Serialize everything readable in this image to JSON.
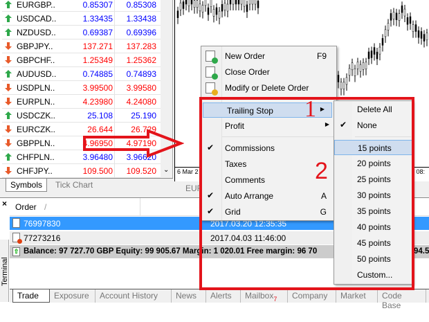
{
  "market_watch": {
    "rows": [
      {
        "symbol": "EURGBP..",
        "bid": "0.85307",
        "ask": "0.85308",
        "dir": "up"
      },
      {
        "symbol": "USDCAD..",
        "bid": "1.33435",
        "ask": "1.33438",
        "dir": "up"
      },
      {
        "symbol": "NZDUSD..",
        "bid": "0.69387",
        "ask": "0.69396",
        "dir": "up"
      },
      {
        "symbol": "GBPJPY..",
        "bid": "137.271",
        "ask": "137.283",
        "dir": "down"
      },
      {
        "symbol": "GBPCHF..",
        "bid": "1.25349",
        "ask": "1.25362",
        "dir": "down"
      },
      {
        "symbol": "AUDUSD..",
        "bid": "0.74885",
        "ask": "0.74893",
        "dir": "up"
      },
      {
        "symbol": "USDPLN..",
        "bid": "3.99500",
        "ask": "3.99580",
        "dir": "down"
      },
      {
        "symbol": "EURPLN..",
        "bid": "4.23980",
        "ask": "4.24080",
        "dir": "down"
      },
      {
        "symbol": "USDCZK..",
        "bid": "25.108",
        "ask": "25.190",
        "dir": "up"
      },
      {
        "symbol": "EURCZK..",
        "bid": "26.644",
        "ask": "26.729",
        "dir": "down"
      },
      {
        "symbol": "GBPPLN..",
        "bid": "4.96950",
        "ask": "4.97190",
        "dir": "down"
      },
      {
        "symbol": "CHFPLN..",
        "bid": "3.96480",
        "ask": "3.96620",
        "dir": "up"
      },
      {
        "symbol": "CHFJPY..",
        "bid": "109.500",
        "ask": "109.520",
        "dir": "down"
      }
    ],
    "tabs": [
      "Symbols",
      "Tick Chart"
    ]
  },
  "chart": {
    "date_left": "6 Mar 2",
    "date_right": "r 08:",
    "tab": "EUR"
  },
  "terminal": {
    "side_label": "Terminal",
    "close": "×",
    "col_order": "Order",
    "sort_mark": "/",
    "orders": [
      {
        "id": "76997830",
        "time": "2017.03.20 12:35:35",
        "selected": true
      },
      {
        "id": "77273216",
        "time": "2017.04.03 11:46:00",
        "selected": false
      }
    ],
    "balance": "Balance: 97 727.70 GBP  Equity: 99 905.67  Margin: 1 020.01  Free margin: 96 70",
    "balance_tail": "94.5",
    "tabs": [
      "Trade",
      "Exposure",
      "Account History",
      "News",
      "Alerts",
      "Mailbox",
      "Company",
      "Market",
      "Code Base"
    ],
    "mailbox_badge": "7"
  },
  "context_menu": {
    "items": [
      {
        "label": "New Order",
        "shortcut": "F9",
        "icon": "new-order-icon"
      },
      {
        "label": "Close Order",
        "icon": "close-order-icon"
      },
      {
        "label": "Modify or Delete Order",
        "icon": "modify-order-icon"
      },
      {
        "label": "Trailing Stop",
        "submenu": true,
        "highlighted": true
      },
      {
        "label": "Profit",
        "submenu": true
      },
      {
        "label": "Commissions",
        "checked": true
      },
      {
        "label": "Taxes"
      },
      {
        "label": "Comments"
      },
      {
        "label": "Auto Arrange",
        "shortcut": "A",
        "checked": true
      },
      {
        "label": "Grid",
        "shortcut": "G",
        "checked": true
      }
    ]
  },
  "submenu": {
    "items": [
      "Delete All",
      "None",
      "15 points",
      "20 points",
      "25 points",
      "30 points",
      "35 points",
      "40 points",
      "45 points",
      "50 points",
      "Custom..."
    ],
    "checked": "None",
    "highlighted": "15 points"
  },
  "annotations": {
    "step1": "1",
    "step2": "2",
    "color": "#e3141b"
  },
  "colors": {
    "up": "#0000ff",
    "down": "#ff0000",
    "selection": "#3399ff"
  }
}
